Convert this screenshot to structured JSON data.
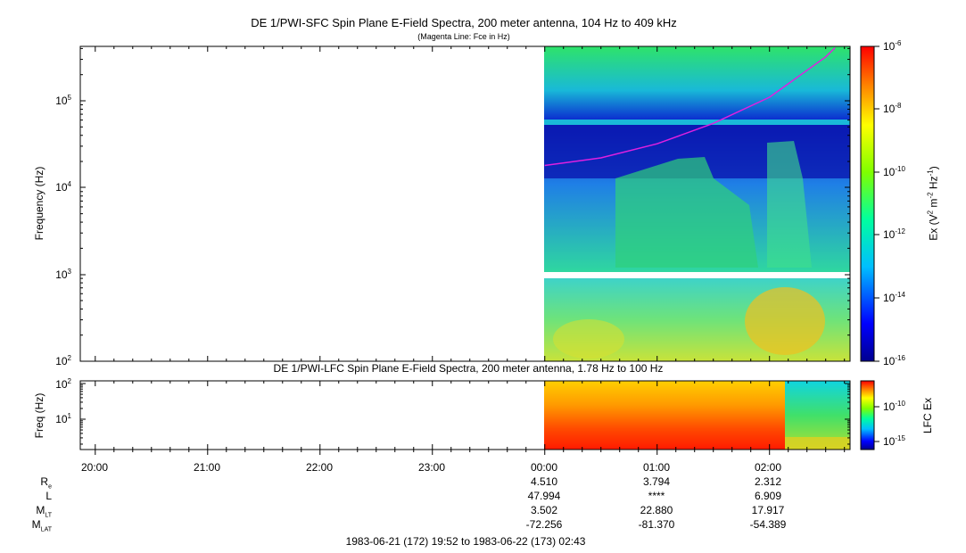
{
  "titles": {
    "main": "DE 1/PWI-SFC  Spin Plane E-Field Spectra, 200 meter antenna, 104 Hz to 409 kHz",
    "sub": "(Magenta Line: Fce in Hz)",
    "lower": "DE 1/PWI-LFC  Spin Plane E-Field Spectra, 200 meter antenna, 1.78 Hz to 100 Hz"
  },
  "colors": {
    "fce_line": "#e020e0"
  },
  "chart_data": [
    {
      "type": "heatmap",
      "title": "DE 1/PWI-SFC  Spin Plane E-Field Spectra, 200 meter antenna, 104 Hz to 409 kHz",
      "ylabel": "Frequency (Hz)",
      "yscale": "log",
      "ylim": [
        100,
        409000
      ],
      "y_ticks": [
        "10^2",
        "10^3",
        "10^4",
        "10^5"
      ],
      "x_ticks": [
        "20:00",
        "21:00",
        "22:00",
        "23:00",
        "00:00",
        "01:00",
        "02:00"
      ],
      "x_range": [
        "1983-06-21 19:52",
        "1983-06-22 02:43"
      ],
      "data_start": "00:00",
      "colorbar": {
        "label": "Ex (V^2 m^-2 Hz^-1)",
        "scale": "log",
        "range": [
          1e-16,
          1e-06
        ],
        "ticks": [
          "10^-6",
          "10^-8",
          "10^-10",
          "10^-12",
          "10^-14",
          "10^-16"
        ]
      },
      "series": [
        {
          "name": "Fce in Hz",
          "color": "#e020e0",
          "points": [
            [
              "00:00",
              18000
            ],
            [
              "00:30",
              22000
            ],
            [
              "01:00",
              32000
            ],
            [
              "01:30",
              55000
            ],
            [
              "02:00",
              110000
            ],
            [
              "02:30",
              320000
            ],
            [
              "02:35",
              409000
            ]
          ]
        }
      ]
    },
    {
      "type": "heatmap",
      "title": "DE 1/PWI-LFC  Spin Plane E-Field Spectra, 200 meter antenna, 1.78 Hz to 100 Hz",
      "ylabel": "Freq (Hz)",
      "yscale": "log",
      "ylim": [
        1.78,
        100
      ],
      "y_ticks": [
        "10^1",
        "10^2"
      ],
      "colorbar": {
        "label": "LFC Ex",
        "scale": "log",
        "ticks": [
          "10^-10",
          "10^-15"
        ]
      }
    }
  ],
  "ephemeris": {
    "row_labels": [
      "R",
      "L",
      "M",
      "M"
    ],
    "row_subs": [
      "e",
      "",
      "LT",
      "LAT"
    ],
    "columns": [
      {
        "time": "00:00",
        "values": [
          "4.510",
          "47.994",
          "3.502",
          "-72.256"
        ]
      },
      {
        "time": "01:00",
        "values": [
          "3.794",
          "****",
          "22.880",
          "-81.370"
        ]
      },
      {
        "time": "02:00",
        "values": [
          "2.312",
          "6.909",
          "17.917",
          "-54.389"
        ]
      }
    ],
    "time_range": "1983-06-21 (172) 19:52 to 1983-06-22 (173) 02:43"
  }
}
